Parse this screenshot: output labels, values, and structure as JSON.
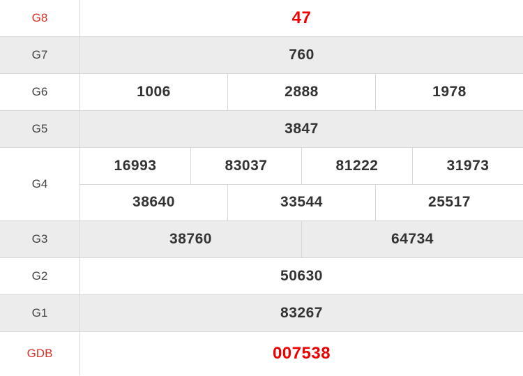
{
  "colors": {
    "row_alt_bg": "#ececec",
    "border": "#d8d8d8",
    "label_text": "#444444",
    "value_text": "#333333",
    "red_label": "#d93025",
    "red_value": "#ee0000"
  },
  "chart_data": {
    "type": "table",
    "title": "",
    "columns": [
      "prize",
      "numbers"
    ],
    "rows": [
      {
        "label": "G8",
        "label_red": true,
        "value_red": true,
        "lines": [
          [
            "47"
          ]
        ]
      },
      {
        "label": "G7",
        "label_red": false,
        "value_red": false,
        "lines": [
          [
            "760"
          ]
        ]
      },
      {
        "label": "G6",
        "label_red": false,
        "value_red": false,
        "lines": [
          [
            "1006",
            "2888",
            "1978"
          ]
        ]
      },
      {
        "label": "G5",
        "label_red": false,
        "value_red": false,
        "lines": [
          [
            "3847"
          ]
        ]
      },
      {
        "label": "G4",
        "label_red": false,
        "value_red": false,
        "lines": [
          [
            "16993",
            "83037",
            "81222",
            "31973"
          ],
          [
            "38640",
            "33544",
            "25517"
          ]
        ]
      },
      {
        "label": "G3",
        "label_red": false,
        "value_red": false,
        "lines": [
          [
            "38760",
            "64734"
          ]
        ]
      },
      {
        "label": "G2",
        "label_red": false,
        "value_red": false,
        "lines": [
          [
            "50630"
          ]
        ]
      },
      {
        "label": "G1",
        "label_red": false,
        "value_red": false,
        "lines": [
          [
            "83267"
          ]
        ]
      },
      {
        "label": "GDB",
        "label_red": true,
        "value_red": true,
        "lines": [
          [
            "007538"
          ]
        ]
      }
    ]
  }
}
